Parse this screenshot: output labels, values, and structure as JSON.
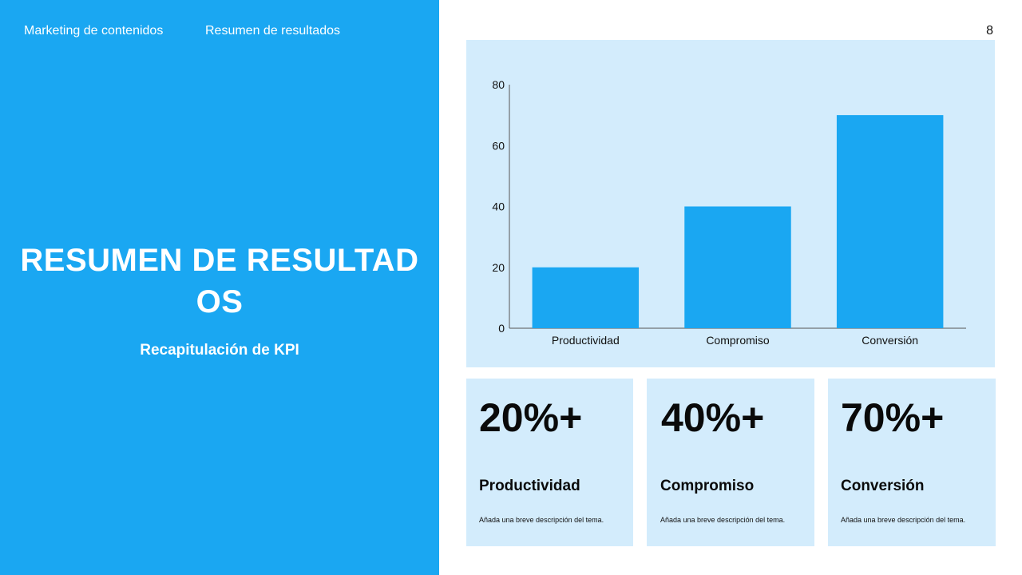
{
  "nav": {
    "item_1": "Marketing de contenidos",
    "item_2": "Resumen de resultados"
  },
  "page_number": "8",
  "slide": {
    "title": "RESUMEN DE RESULTADOS",
    "subtitle": "Recapitulación de KPI"
  },
  "colors": {
    "accent": "#1aa7f2",
    "card_bg": "#d3ecfc",
    "bar": "#1aa7f2"
  },
  "chart_data": {
    "type": "bar",
    "categories": [
      "Productividad",
      "Compromiso",
      "Conversión"
    ],
    "values": [
      20,
      40,
      70
    ],
    "ylim": [
      0,
      80
    ],
    "yticks": [
      "0",
      "20",
      "40",
      "60",
      "80"
    ],
    "grid": false
  },
  "kpis": [
    {
      "value": "20%+",
      "label": "Productividad",
      "description": "Añada una breve descripción del tema."
    },
    {
      "value": "40%+",
      "label": "Compromiso",
      "description": "Añada una breve descripción del tema."
    },
    {
      "value": "70%+",
      "label": "Conversión",
      "description": "Añada una breve descripción del tema."
    }
  ]
}
